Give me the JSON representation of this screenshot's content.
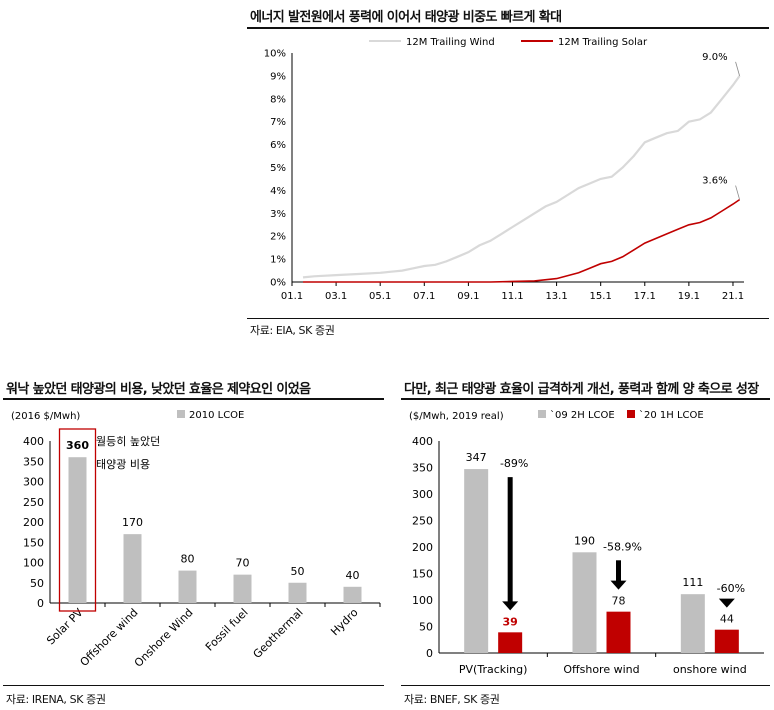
{
  "top": {
    "title": "에너지 발전원에서 풍력에 이어서 태양광 비중도 빠르게 확대",
    "source": "자료: EIA, SK 증권"
  },
  "left": {
    "title": "워낙 높았던 태양광의 비용, 낮았던 효율은 제약요인 이었음",
    "source": "자료: IRENA, SK 증권",
    "unit": "(2016 $/Mwh)",
    "annotation": [
      "월등히 높았던",
      "태양광 비용"
    ]
  },
  "right": {
    "title": "다만, 최근 태양광 효율이 급격하게 개선, 풍력과 함께 양 축으로 성장",
    "source": "자료: BNEF, SK 증권",
    "unit": "($/Mwh, 2019 real)"
  },
  "colors": {
    "wind": "#d9d9d9",
    "solar": "#c00000",
    "gray_bar": "#bfbfbf",
    "red_bar": "#c00000"
  },
  "chart_data": [
    {
      "type": "line",
      "x_ticks": [
        "01.1",
        "03.1",
        "05.1",
        "07.1",
        "09.1",
        "11.1",
        "13.1",
        "15.1",
        "17.1",
        "19.1",
        "21.1"
      ],
      "ylim": [
        0,
        10
      ],
      "y_ticks": [
        "0%",
        "1%",
        "2%",
        "3%",
        "4%",
        "5%",
        "6%",
        "7%",
        "8%",
        "9%",
        "10%"
      ],
      "series": [
        {
          "name": "12M Trailing Wind",
          "color": "#d9d9d9",
          "points": [
            [
              2001.5,
              0.2
            ],
            [
              2002.0,
              0.25
            ],
            [
              2003.0,
              0.3
            ],
            [
              2004.0,
              0.35
            ],
            [
              2005.0,
              0.4
            ],
            [
              2005.5,
              0.45
            ],
            [
              2006.0,
              0.5
            ],
            [
              2006.5,
              0.6
            ],
            [
              2007.0,
              0.7
            ],
            [
              2007.5,
              0.75
            ],
            [
              2008.0,
              0.9
            ],
            [
              2008.5,
              1.1
            ],
            [
              2009.0,
              1.3
            ],
            [
              2009.5,
              1.6
            ],
            [
              2010.0,
              1.8
            ],
            [
              2010.5,
              2.1
            ],
            [
              2011.0,
              2.4
            ],
            [
              2011.5,
              2.7
            ],
            [
              2012.0,
              3.0
            ],
            [
              2012.5,
              3.3
            ],
            [
              2013.0,
              3.5
            ],
            [
              2013.5,
              3.8
            ],
            [
              2014.0,
              4.1
            ],
            [
              2014.5,
              4.3
            ],
            [
              2015.0,
              4.5
            ],
            [
              2015.5,
              4.6
            ],
            [
              2016.0,
              5.0
            ],
            [
              2016.5,
              5.5
            ],
            [
              2017.0,
              6.1
            ],
            [
              2017.5,
              6.3
            ],
            [
              2018.0,
              6.5
            ],
            [
              2018.5,
              6.6
            ],
            [
              2019.0,
              7.0
            ],
            [
              2019.5,
              7.1
            ],
            [
              2020.0,
              7.4
            ],
            [
              2020.5,
              8.0
            ],
            [
              2021.0,
              8.6
            ],
            [
              2021.3,
              9.0
            ]
          ],
          "end_label": "9.0%"
        },
        {
          "name": "12M Trailing Solar",
          "color": "#c00000",
          "points": [
            [
              2001.5,
              0.0
            ],
            [
              2010.0,
              0.0
            ],
            [
              2012.0,
              0.05
            ],
            [
              2013.0,
              0.15
            ],
            [
              2014.0,
              0.4
            ],
            [
              2014.5,
              0.6
            ],
            [
              2015.0,
              0.8
            ],
            [
              2015.5,
              0.9
            ],
            [
              2016.0,
              1.1
            ],
            [
              2016.5,
              1.4
            ],
            [
              2017.0,
              1.7
            ],
            [
              2017.5,
              1.9
            ],
            [
              2018.0,
              2.1
            ],
            [
              2018.5,
              2.3
            ],
            [
              2019.0,
              2.5
            ],
            [
              2019.5,
              2.6
            ],
            [
              2020.0,
              2.8
            ],
            [
              2020.5,
              3.1
            ],
            [
              2021.0,
              3.4
            ],
            [
              2021.3,
              3.6
            ]
          ],
          "end_label": "3.6%"
        }
      ]
    },
    {
      "type": "bar",
      "legend": "2010 LCOE",
      "categories": [
        "Solar PV",
        "Offshore wind",
        "Onshore Wind",
        "Fossil fuel",
        "Geothermal",
        "Hydro"
      ],
      "values": [
        360,
        170,
        80,
        70,
        50,
        40
      ],
      "ylim": [
        0,
        400
      ],
      "y_ticks": [
        "0",
        "50",
        "100",
        "150",
        "200",
        "250",
        "300",
        "350",
        "400"
      ],
      "highlight_index": 0
    },
    {
      "type": "bar",
      "categories": [
        "PV(Tracking)",
        "Offshore wind",
        "onshore wind"
      ],
      "series": [
        {
          "name": "`09 2H LCOE",
          "color": "#bfbfbf",
          "values": [
            347,
            190,
            111
          ]
        },
        {
          "name": "`20 1H LCOE",
          "color": "#c00000",
          "values": [
            39,
            78,
            44
          ]
        }
      ],
      "changes": [
        "-89%",
        "-58.9%",
        "-60%"
      ],
      "ylim": [
        0,
        400
      ],
      "y_ticks": [
        "0",
        "50",
        "100",
        "150",
        "200",
        "250",
        "300",
        "350",
        "400"
      ]
    }
  ]
}
